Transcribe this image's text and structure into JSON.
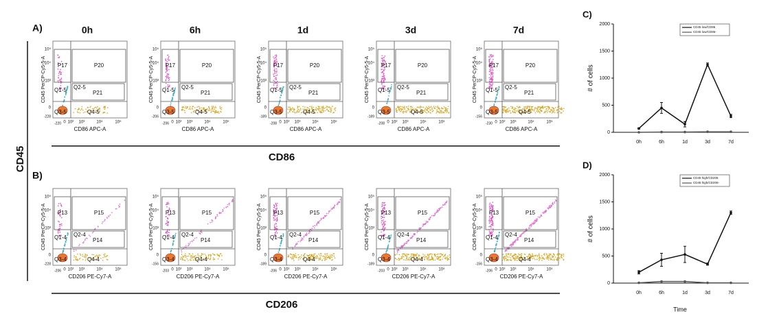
{
  "side_label": "CD45",
  "panels": [
    {
      "label": "A)",
      "axis_label": "CD86",
      "y_title": "CD45 PerCP-Cy5-5-A",
      "x_title": "CD86 APC-A",
      "gates": {
        "top_left": "P17",
        "top_right": "P20",
        "mid_left": "Q1-5",
        "mid_right": "Q2-5",
        "inner": "P21",
        "low_left": "Q3-5",
        "low_right": "Q4-5"
      },
      "y_ticks": [
        "10⁵",
        "10⁴",
        "10³",
        "0"
      ],
      "x_ticks": [
        "0",
        "10²",
        "10³",
        "10⁴",
        "10⁵"
      ],
      "plots": [
        {
          "time": "0h",
          "y_min": "-228",
          "x_min": "-220"
        },
        {
          "time": "6h",
          "y_min": "-206",
          "x_min": "-206"
        },
        {
          "time": "1d",
          "y_min": "-189",
          "x_min": "-208"
        },
        {
          "time": "3d",
          "y_min": "-189",
          "x_min": "-208"
        },
        {
          "time": "7d",
          "y_min": "-156",
          "x_min": "-230"
        }
      ]
    },
    {
      "label": "B)",
      "axis_label": "CD206",
      "y_title": "CD45 PerCP-Cy5-5-A",
      "x_title": "CD206 PE-Cy7-A",
      "gates": {
        "top_left": "P13",
        "top_right": "P15",
        "mid_left": "Q1-4",
        "mid_right": "Q2-4",
        "inner": "P14",
        "low_left": "Q3-4",
        "low_right": "Q4-4"
      },
      "y_ticks": [
        "10⁵",
        "10⁴",
        "10³",
        "0"
      ],
      "x_ticks": [
        "0",
        "10²",
        "10³",
        "10⁴",
        "10⁵"
      ],
      "plots": [
        {
          "time": "0h",
          "y_min": "-228",
          "x_min": "-206"
        },
        {
          "time": "6h",
          "y_min": "-156",
          "x_min": "-203"
        },
        {
          "time": "1d",
          "y_min": "-189",
          "x_min": "-206"
        },
        {
          "time": "3d",
          "y_min": "-189",
          "x_min": "-203"
        },
        {
          "time": "7d",
          "y_min": "-156",
          "x_min": "-206"
        }
      ]
    }
  ],
  "chart_data": [
    {
      "type": "line",
      "label": "C)",
      "y_label": "# of cells",
      "categories": [
        "0h",
        "6h",
        "1d",
        "3d",
        "7d"
      ],
      "series": [
        {
          "name": "CD45 low/CD86",
          "color": "#111111",
          "values": [
            70,
            450,
            150,
            1250,
            300
          ],
          "errors": [
            10,
            100,
            50,
            30,
            30
          ]
        },
        {
          "name": "CD45 low/CD86-",
          "color": "#555555",
          "values": [
            0,
            5,
            5,
            10,
            10
          ],
          "errors": [
            0,
            0,
            0,
            0,
            0
          ]
        }
      ],
      "ylim": [
        0,
        2000
      ],
      "yticks": [
        0,
        500,
        1000,
        1500,
        2000
      ]
    },
    {
      "type": "line",
      "label": "D)",
      "y_label": "# of cells",
      "x_label": "Time",
      "categories": [
        "0h",
        "6h",
        "1d",
        "3d",
        "7d"
      ],
      "series": [
        {
          "name": "CD45 high/CD206",
          "color": "#111111",
          "values": [
            200,
            430,
            530,
            350,
            1300
          ],
          "errors": [
            30,
            120,
            150,
            20,
            30
          ]
        },
        {
          "name": "CD45 high/CD206-",
          "color": "#555555",
          "values": [
            5,
            30,
            30,
            5,
            5
          ],
          "errors": [
            0,
            0,
            0,
            0,
            0
          ]
        }
      ],
      "ylim": [
        0,
        2000
      ],
      "yticks": [
        0,
        500,
        1000,
        1500,
        2000
      ]
    }
  ]
}
